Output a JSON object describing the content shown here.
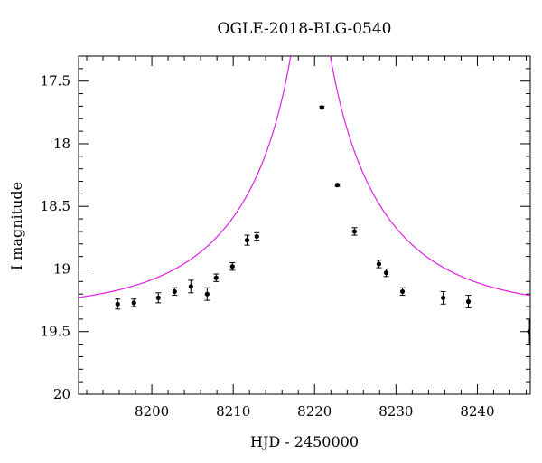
{
  "chart_data": {
    "type": "scatter",
    "title": "OGLE-2018-BLG-0540",
    "xlabel": "HJD - 2450000",
    "ylabel": "I magnitude",
    "xlim": [
      8191,
      8246.5
    ],
    "ylim": [
      20.0,
      17.3
    ],
    "y_inverted": true,
    "x_ticks": [
      8200,
      8210,
      8220,
      8230,
      8240
    ],
    "y_ticks": [
      17.5,
      18,
      18.5,
      19,
      19.5,
      20
    ],
    "x_tick_labels": [
      "8200",
      "8210",
      "8220",
      "8230",
      "8240"
    ],
    "y_tick_labels": [
      "17.5",
      "18",
      "18.5",
      "19",
      "19.5",
      "20"
    ],
    "series": [
      {
        "type": "errorbar-points",
        "color": "#000000",
        "x": [
          8195.8,
          8197.8,
          8200.8,
          8202.8,
          8204.8,
          8206.8,
          8207.9,
          8209.9,
          8211.7,
          8212.9,
          8220.9,
          8222.8,
          8224.9,
          8227.9,
          8228.8,
          8230.8,
          8235.8,
          8238.9,
          8246.4
        ],
        "y": [
          19.28,
          19.27,
          19.23,
          19.18,
          19.14,
          19.2,
          19.07,
          18.98,
          18.77,
          18.74,
          17.71,
          18.33,
          18.7,
          18.96,
          19.03,
          19.18,
          19.23,
          19.26,
          19.5
        ],
        "err": [
          0.04,
          0.03,
          0.04,
          0.03,
          0.05,
          0.05,
          0.03,
          0.03,
          0.04,
          0.03,
          0.01,
          0.01,
          0.03,
          0.03,
          0.03,
          0.03,
          0.05,
          0.05,
          0.1
        ]
      },
      {
        "type": "model-curve",
        "color": "#dd22dd",
        "t0": 8219.5,
        "tE": 17,
        "u0": 0.06,
        "baseline": 19.33
      }
    ],
    "grid": false,
    "legend": "none"
  }
}
